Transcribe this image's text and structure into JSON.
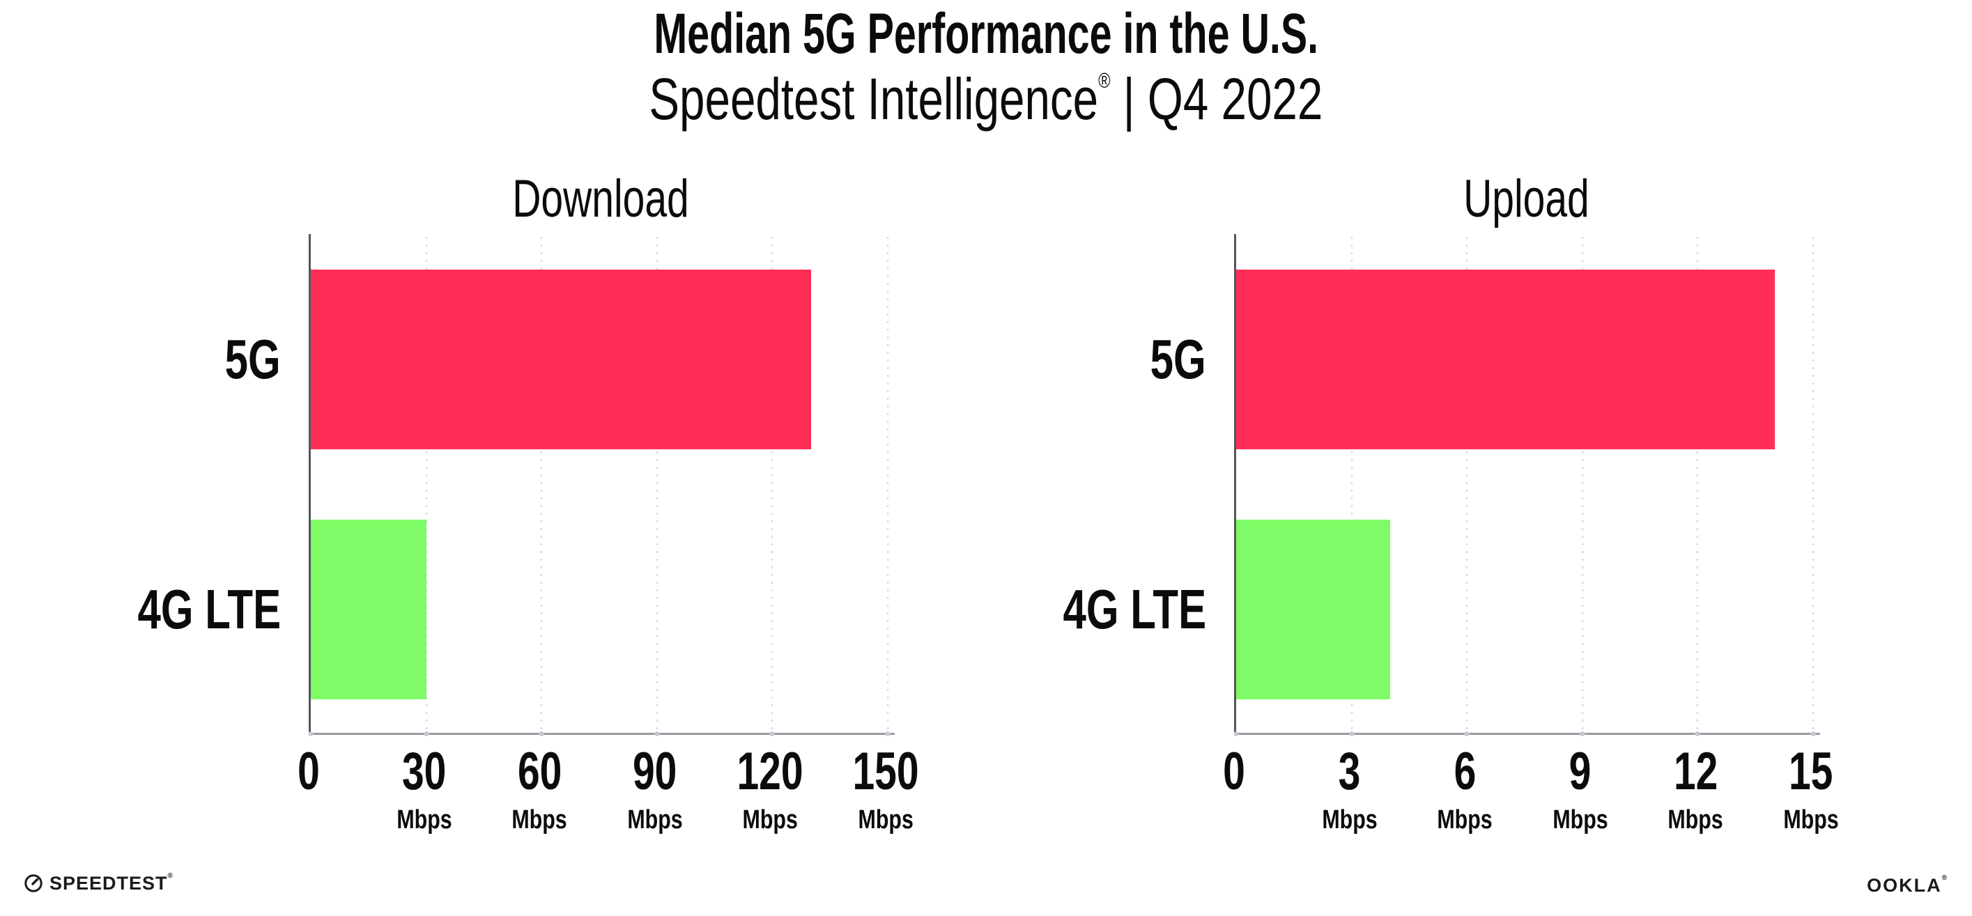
{
  "header": {
    "title": "Median 5G Performance in the U.S.",
    "subtitle_brand": "Speedtest Intelligence",
    "subtitle_reg": "®",
    "subtitle_rest": " | Q4 2022"
  },
  "chart_data": [
    {
      "type": "bar",
      "orientation": "horizontal",
      "title": "Download",
      "categories": [
        "5G",
        "4G LTE"
      ],
      "values": [
        130,
        30
      ],
      "unit": "Mbps",
      "xticks": [
        0,
        30,
        60,
        90,
        120,
        150
      ],
      "xlim": [
        0,
        150
      ],
      "bar_colors": [
        "#FF2E56",
        "#7EFB66"
      ],
      "grid": "vertical-dotted",
      "legend": "none"
    },
    {
      "type": "bar",
      "orientation": "horizontal",
      "title": "Upload",
      "categories": [
        "5G",
        "4G LTE"
      ],
      "values": [
        14,
        4
      ],
      "unit": "Mbps",
      "xticks": [
        0,
        3,
        6,
        9,
        12,
        15
      ],
      "xlim": [
        0,
        15
      ],
      "bar_colors": [
        "#FF2E56",
        "#7EFB66"
      ],
      "grid": "vertical-dotted",
      "legend": "none"
    }
  ],
  "colors": {
    "bar_5g": "#FF2E56",
    "bar_4g_lte": "#7EFB66",
    "x_axis_line": "#9b9ba1",
    "y_axis_line": "#55555b",
    "grid_dots": "#dcdde6",
    "text": "#0b0b0b"
  },
  "footer": {
    "speedtest_label": "SPEEDTEST",
    "speedtest_reg": "®",
    "ookla_label": "OOKLA",
    "ookla_reg": "®"
  }
}
